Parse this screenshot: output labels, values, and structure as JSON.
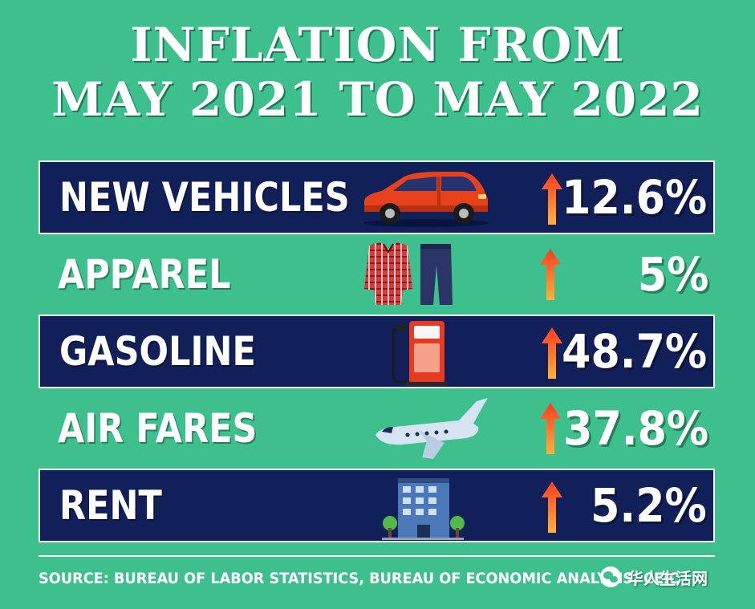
{
  "title": {
    "line1": "INFLATION FROM",
    "line2": "MAY 2021 TO MAY 2022"
  },
  "colors": {
    "background": "#3dbf8e",
    "row_dark": "#12205a",
    "arrow_top": "#ff3b1f",
    "arrow_bottom": "#ffb13b"
  },
  "rows": [
    {
      "label": "NEW VEHICLES",
      "value": "12.6%",
      "icon": "car-icon",
      "direction": "up"
    },
    {
      "label": "APPAREL",
      "value": "5%",
      "icon": "apparel-icon",
      "direction": "up"
    },
    {
      "label": "GASOLINE",
      "value": "48.7%",
      "icon": "gas-pump-icon",
      "direction": "up"
    },
    {
      "label": "AIR FARES",
      "value": "37.8%",
      "icon": "airplane-icon",
      "direction": "up"
    },
    {
      "label": "RENT",
      "value": "5.2%",
      "icon": "building-icon",
      "direction": "up"
    }
  ],
  "chart_data": {
    "type": "table",
    "title": "INFLATION FROM MAY 2021 TO MAY 2022",
    "categories": [
      "NEW VEHICLES",
      "APPAREL",
      "GASOLINE",
      "AIR FARES",
      "RENT"
    ],
    "values": [
      12.6,
      5,
      48.7,
      37.8,
      5.2
    ],
    "unit": "%"
  },
  "source": "SOURCE: BUREAU OF LABOR STATISTICS, BUREAU OF ECONOMIC ANALYSIS, CEIC, IM&MC",
  "watermark": "华人生活网"
}
